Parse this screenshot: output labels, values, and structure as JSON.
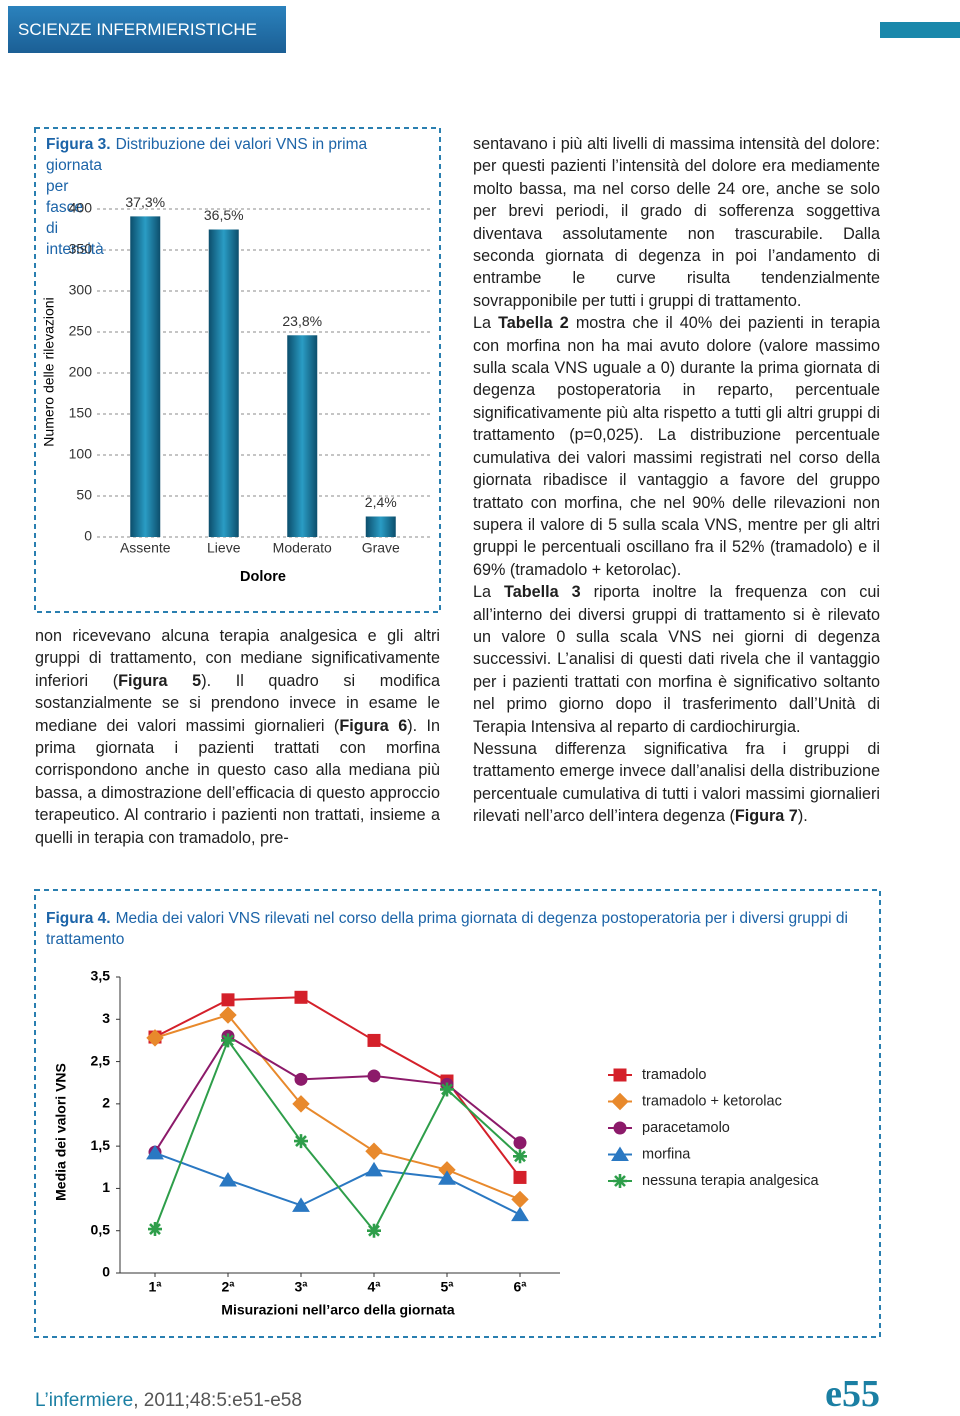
{
  "header": {
    "section": "SCIENZE INFERMIERISTICHE"
  },
  "chart_data": [
    {
      "type": "bar",
      "figure_label": "Figura 3.",
      "title": "Distribuzione dei valori VNS in prima giornata per fasce di intensità",
      "y_label": "Numero delle rilevazioni",
      "x_label": "Dolore",
      "categories": [
        "Assente",
        "Lieve",
        "Moderato",
        "Grave"
      ],
      "values": [
        391,
        375,
        246,
        25
      ],
      "annotations": [
        "37,3%",
        "36,5%",
        "23,8%",
        "2,4%"
      ],
      "color": "#2a9cc4",
      "ylim": [
        0,
        400
      ],
      "yticks": [
        0,
        50,
        100,
        150,
        200,
        250,
        300,
        350,
        400
      ],
      "grid": true
    },
    {
      "type": "line",
      "figure_label": "Figura 4.",
      "title": "Media dei valori VNS rilevati nel corso della prima giornata di degenza postoperatoria per i diversi gruppi di trattamento",
      "y_label": "Media dei valori VNS",
      "x_label": "Misurazioni nell’arco della giornata",
      "categories": [
        "1ª",
        "2ª",
        "3ª",
        "4ª",
        "5ª",
        "6ª"
      ],
      "series": [
        {
          "name": "tramadolo",
          "color": "#d4202a",
          "marker": "square",
          "values": [
            2.79,
            3.23,
            3.26,
            2.75,
            2.27,
            1.13
          ]
        },
        {
          "name": "tramadolo + ketorolac",
          "color": "#e8892c",
          "marker": "diamond",
          "values": [
            2.78,
            3.05,
            2.0,
            1.44,
            1.22,
            0.87
          ]
        },
        {
          "name": "paracetamolo",
          "color": "#8c1a6a",
          "marker": "circle",
          "values": [
            1.43,
            2.8,
            2.29,
            2.33,
            2.23,
            1.54
          ]
        },
        {
          "name": "morfina",
          "color": "#2a78c2",
          "marker": "triangle",
          "values": [
            1.42,
            1.1,
            0.8,
            1.22,
            1.12,
            0.69
          ]
        },
        {
          "name": "nessuna terapia analgesica",
          "color": "#2e9e4a",
          "marker": "asterisk",
          "values": [
            0.52,
            2.75,
            1.56,
            0.5,
            2.17,
            1.38
          ]
        }
      ],
      "ylim": [
        0,
        3.5
      ],
      "yticks": [
        0,
        {
          "value": 0.5,
          "label": "0,5"
        },
        1,
        {
          "value": 1.5,
          "label": "1,5"
        },
        2,
        {
          "value": 2.5,
          "label": "2,5"
        },
        3,
        {
          "value": 3.5,
          "label": "3,5"
        }
      ],
      "legend": "right"
    }
  ],
  "body": {
    "left": [
      [
        "non ricevevano alcuna terapia analgesica e gli altri gruppi di trattamento, con mediane significativamente inferiori (",
        {
          "bold": "Figura 5"
        },
        "). Il quadro si modifica sostanzialmente se si prendono invece in esame le mediane dei valori massimi giornalieri (",
        {
          "bold": "Figura 6"
        },
        "). In prima giornata i pazienti trattati con morfina corrispondono anche in questo caso alla mediana più bassa, a dimostrazione dell’efficacia di questo approccio terapeutico. Al contrario i pazienti non trattati, insieme a quelli in terapia con tramadolo, pre-"
      ]
    ],
    "right": [
      [
        "sentavano i più alti livelli di massima intensità del dolore: per questi pazienti l’intensità del dolore era mediamente molto bassa, ma nel corso delle 24 ore, anche se solo per brevi periodi, il grado di sofferenza soggettiva diventava assolutamente non trascurabile. Dalla seconda giornata di degenza in poi l’andamento di entrambe le curve risulta tendenzialmente sovrapponibile per tutti i gruppi di trattamento."
      ],
      [
        "La ",
        {
          "bold": "Tabella 2"
        },
        " mostra che il 40% dei pazienti in terapia con morfina non ha mai avuto dolore (valore massimo sulla scala VNS uguale a 0) durante la prima giornata di degenza postoperatoria in reparto, percentuale significativamente più alta rispetto a tutti gli altri gruppi di trattamento (p=0,025). La distribuzione percentuale cumulativa dei valori massimi registrati nel corso della giornata ribadisce il vantaggio a favore del gruppo trattato con morfina, che nel 90% delle rilevazioni non supera il valore di 5 sulla scala VNS, mentre per gli altri gruppi le percentuali oscillano fra il 52% (tramadolo) e il 69% (tramadolo + ketorolac)."
      ],
      [
        "La ",
        {
          "bold": "Tabella 3"
        },
        " riporta inoltre la frequenza con cui all’interno dei diversi gruppi di trattamento si è rilevato un valore 0 sulla scala VNS nei giorni di degenza successivi. L’analisi di questi dati rivela che il vantaggio per i pazienti trattati con morfina è significativo soltanto nel primo giorno dopo il trasferimento dall’Unità di Terapia Intensiva al reparto di cardiochirurgia."
      ],
      [
        "Nessuna differenza significativa fra i gruppi di trattamento emerge invece dall’analisi della distribuzione percentuale cumulativa di tutti i valori massimi giornalieri rilevati nell’arco dell’intera degenza (",
        {
          "bold": "Figura 7"
        },
        ")."
      ]
    ]
  },
  "footer": {
    "journal": "L’infermiere",
    "citation": ", 2011;48:5:e51-e58",
    "page": "e55"
  }
}
